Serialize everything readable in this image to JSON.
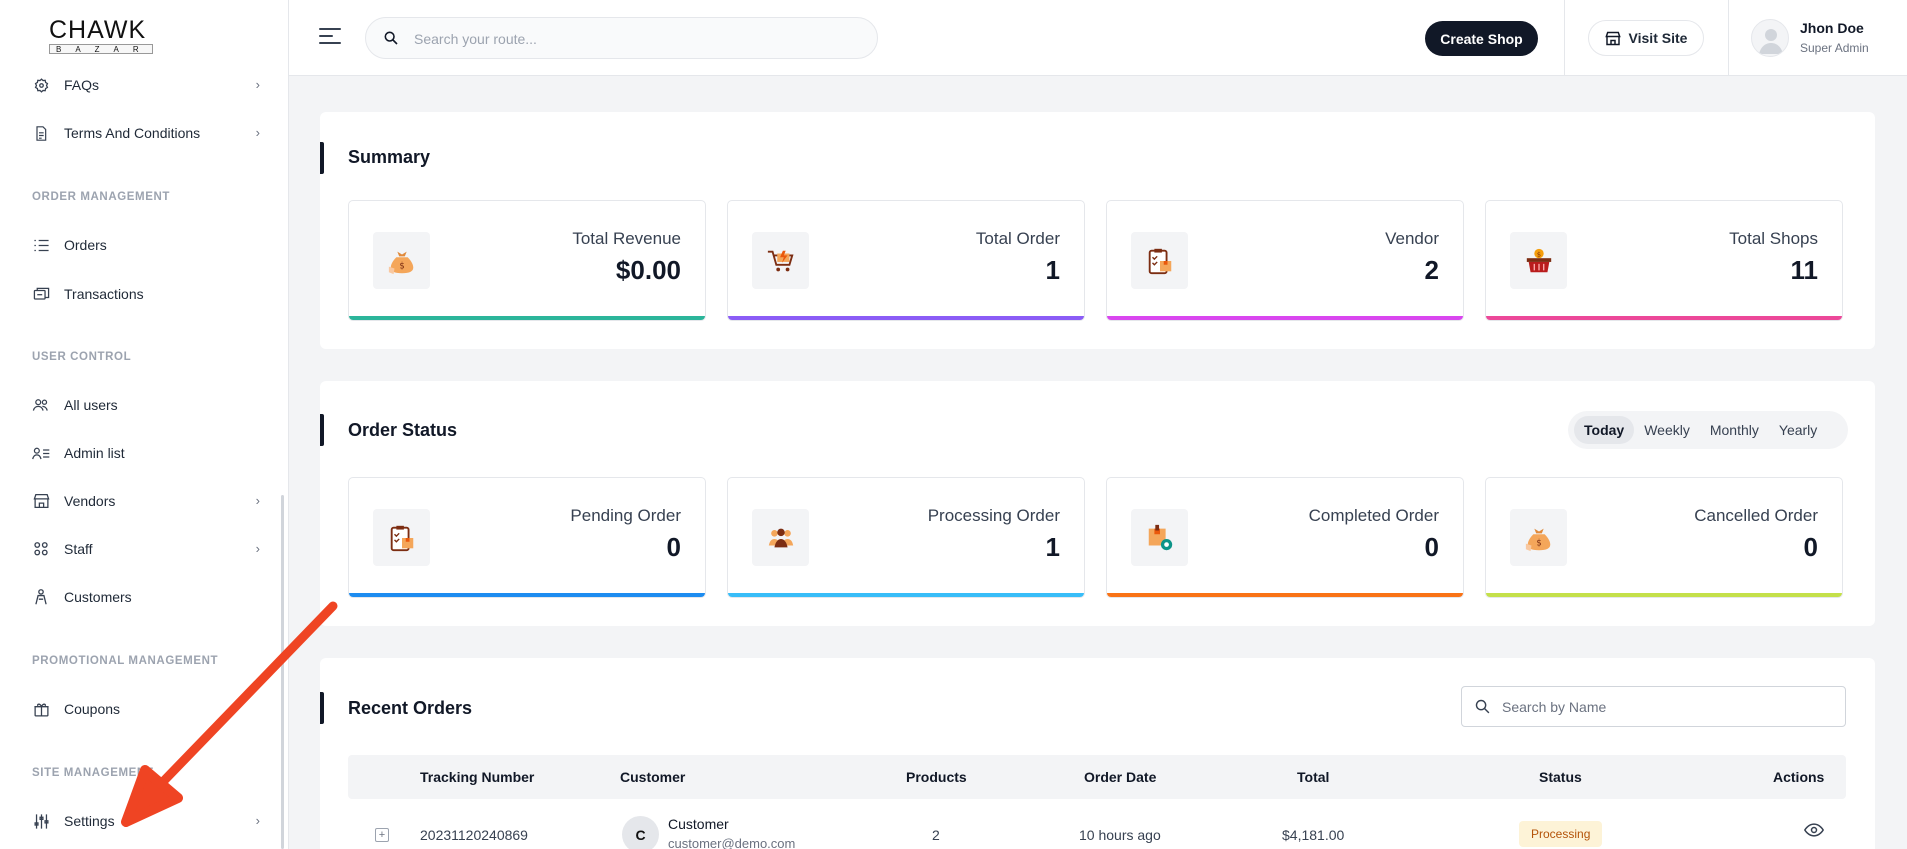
{
  "logo": {
    "brand": "CHAWK",
    "sub": "BAZAR"
  },
  "sidebar": {
    "items_top": [
      {
        "label": "FAQs",
        "icon": "faq-icon",
        "chevron": true
      },
      {
        "label": "Terms And Conditions",
        "icon": "document-icon",
        "chevron": true
      }
    ],
    "sections": [
      {
        "heading": "ORDER MANAGEMENT",
        "items": [
          {
            "label": "Orders",
            "icon": "list-icon"
          },
          {
            "label": "Transactions",
            "icon": "transactions-icon"
          }
        ]
      },
      {
        "heading": "USER CONTROL",
        "items": [
          {
            "label": "All users",
            "icon": "users-icon"
          },
          {
            "label": "Admin list",
            "icon": "admin-list-icon"
          },
          {
            "label": "Vendors",
            "icon": "store-icon",
            "chevron": true
          },
          {
            "label": "Staff",
            "icon": "staff-icon",
            "chevron": true
          },
          {
            "label": "Customers",
            "icon": "customer-icon"
          }
        ]
      },
      {
        "heading": "PROMOTIONAL MANAGEMENT",
        "items": [
          {
            "label": "Coupons",
            "icon": "gift-icon"
          }
        ]
      },
      {
        "heading": "SITE MANAGEMENT",
        "items": [
          {
            "label": "Settings",
            "icon": "sliders-icon",
            "chevron": true
          }
        ]
      }
    ]
  },
  "header": {
    "search_placeholder": "Search your route...",
    "create_shop": "Create Shop",
    "visit_site": "Visit Site",
    "user_name": "Jhon Doe",
    "user_role": "Super Admin"
  },
  "summary": {
    "title": "Summary",
    "cards": [
      {
        "label": "Total Revenue",
        "value": "$0.00",
        "color": "#2bb59a",
        "icon": "money-bag-icon"
      },
      {
        "label": "Total Order",
        "value": "1",
        "color": "#8b5cf6",
        "icon": "cart-icon"
      },
      {
        "label": "Vendor",
        "value": "2",
        "color": "#d946ef",
        "icon": "clipboard-icon"
      },
      {
        "label": "Total Shops",
        "value": "11",
        "color": "#ec4899",
        "icon": "basket-icon"
      }
    ]
  },
  "order_status": {
    "title": "Order Status",
    "tabs": [
      "Today",
      "Weekly",
      "Monthly",
      "Yearly"
    ],
    "active_tab": "Today",
    "cards": [
      {
        "label": "Pending Order",
        "value": "0",
        "color": "#1d8cf0",
        "icon": "clipboard-icon"
      },
      {
        "label": "Processing Order",
        "value": "1",
        "color": "#38bdf8",
        "icon": "people-icon"
      },
      {
        "label": "Completed Order",
        "value": "0",
        "color": "#f97316",
        "icon": "box-gear-icon"
      },
      {
        "label": "Cancelled Order",
        "value": "0",
        "color": "#c4e04a",
        "icon": "money-bag-icon"
      }
    ]
  },
  "recent_orders": {
    "title": "Recent Orders",
    "search_placeholder": "Search by Name",
    "columns": [
      "Tracking Number",
      "Customer",
      "Products",
      "Order Date",
      "Total",
      "Status",
      "Actions"
    ],
    "rows": [
      {
        "tracking": "20231120240869",
        "customer_initial": "C",
        "customer_name": "Customer",
        "customer_email": "customer@demo.com",
        "products": "2",
        "date": "10 hours ago",
        "total": "$4,181.00",
        "status": "Processing"
      }
    ]
  }
}
